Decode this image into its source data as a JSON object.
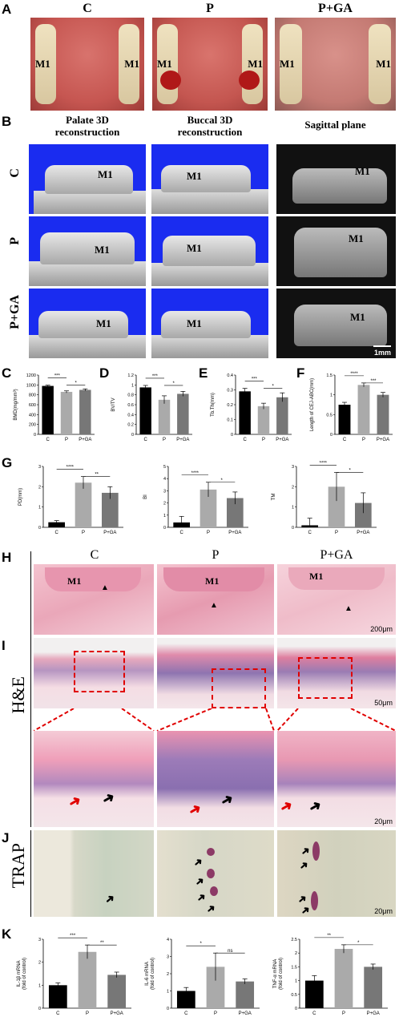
{
  "panelA": {
    "label": "A",
    "cols": [
      "C",
      "P",
      "P+GA"
    ],
    "tooth": "M1"
  },
  "panelB": {
    "label": "B",
    "cols": [
      "Palate 3D\nreconstruction",
      "Buccal 3D\nreconstruction",
      "Sagittal plane"
    ],
    "rows": [
      "C",
      "P",
      "P+GA"
    ],
    "tooth": "M1",
    "scale": "1mm"
  },
  "panelC": {
    "label": "C"
  },
  "panelD": {
    "label": "D"
  },
  "panelE": {
    "label": "E"
  },
  "panelF": {
    "label": "F"
  },
  "panelG": {
    "label": "G"
  },
  "panelH": {
    "label": "H",
    "cols": [
      "C",
      "P",
      "P+GA"
    ],
    "tooth": "M1",
    "scale": "200μm"
  },
  "panelI": {
    "label": "I",
    "rowlabel": "H&E",
    "scale1": "50μm",
    "scale2": "20μm"
  },
  "panelJ": {
    "label": "J",
    "rowlabel": "TRAP",
    "scale": "20μm"
  },
  "panelK": {
    "label": "K"
  },
  "colors": {
    "C": "#000000",
    "P": "#aaaaaa",
    "PGA": "#777777"
  },
  "chart_data": [
    {
      "id": "C",
      "type": "bar",
      "categories": [
        "C",
        "P",
        "P+GA"
      ],
      "values": [
        980,
        860,
        900
      ],
      "errors": [
        15,
        20,
        20
      ],
      "ylabel": "BMD(mg/mm³)",
      "ylim": [
        0,
        1200
      ],
      "yticks": [
        0,
        200,
        400,
        600,
        800,
        1000,
        1200
      ],
      "sig": [
        {
          "a": 0,
          "b": 1,
          "t": "***"
        },
        {
          "a": 1,
          "b": 2,
          "t": "*"
        }
      ]
    },
    {
      "id": "D",
      "type": "bar",
      "categories": [
        "C",
        "P",
        "P+GA"
      ],
      "values": [
        0.95,
        0.7,
        0.82
      ],
      "errors": [
        0.04,
        0.08,
        0.05
      ],
      "ylabel": "BV/TV",
      "ylim": [
        0,
        1.2
      ],
      "yticks": [
        0,
        0.2,
        0.4,
        0.6,
        0.8,
        1.0,
        1.2
      ],
      "sig": [
        {
          "a": 0,
          "b": 1,
          "t": "***"
        },
        {
          "a": 1,
          "b": 2,
          "t": "*"
        }
      ]
    },
    {
      "id": "E",
      "type": "bar",
      "categories": [
        "C",
        "P",
        "P+GA"
      ],
      "values": [
        0.29,
        0.19,
        0.25
      ],
      "errors": [
        0.02,
        0.02,
        0.03
      ],
      "ylabel": "Tb.Th(mm)",
      "ylim": [
        0,
        0.4
      ],
      "yticks": [
        0,
        0.1,
        0.2,
        0.3,
        0.4
      ],
      "sig": [
        {
          "a": 0,
          "b": 1,
          "t": "***"
        },
        {
          "a": 1,
          "b": 2,
          "t": "*"
        }
      ]
    },
    {
      "id": "F",
      "type": "bar",
      "categories": [
        "C",
        "P",
        "P+GA"
      ],
      "values": [
        0.75,
        1.25,
        1.0
      ],
      "errors": [
        0.06,
        0.05,
        0.06
      ],
      "ylabel": "Length of CEJ-ABC(mm)",
      "ylim": [
        0,
        1.5
      ],
      "yticks": [
        0,
        0.5,
        1.0,
        1.5
      ],
      "sig": [
        {
          "a": 0,
          "b": 1,
          "t": "****"
        },
        {
          "a": 1,
          "b": 2,
          "t": "***"
        }
      ]
    },
    {
      "id": "G1",
      "type": "bar",
      "categories": [
        "C",
        "P",
        "P+GA"
      ],
      "values": [
        0.25,
        2.2,
        1.7
      ],
      "errors": [
        0.08,
        0.3,
        0.3
      ],
      "ylabel": "PD(mm)",
      "ylim": [
        0,
        3
      ],
      "yticks": [
        0,
        1,
        2,
        3
      ],
      "sig": [
        {
          "a": 0,
          "b": 1,
          "t": "****"
        },
        {
          "a": 1,
          "b": 2,
          "t": "**"
        }
      ]
    },
    {
      "id": "G2",
      "type": "bar",
      "categories": [
        "C",
        "P",
        "P+GA"
      ],
      "values": [
        0.4,
        3.1,
        2.4
      ],
      "errors": [
        0.5,
        0.6,
        0.5
      ],
      "ylabel": "BI",
      "ylim": [
        0,
        5
      ],
      "yticks": [
        0,
        1,
        2,
        3,
        4,
        5
      ],
      "sig": [
        {
          "a": 0,
          "b": 1,
          "t": "****"
        },
        {
          "a": 1,
          "b": 2,
          "t": "*"
        }
      ]
    },
    {
      "id": "G3",
      "type": "bar",
      "categories": [
        "C",
        "P",
        "P+GA"
      ],
      "values": [
        0.1,
        2.0,
        1.2
      ],
      "errors": [
        0.35,
        0.7,
        0.5
      ],
      "ylabel": "TM",
      "ylim": [
        0,
        3
      ],
      "yticks": [
        0,
        1,
        2,
        3
      ],
      "sig": [
        {
          "a": 0,
          "b": 1,
          "t": "****"
        },
        {
          "a": 1,
          "b": 2,
          "t": "*"
        }
      ]
    },
    {
      "id": "K1",
      "type": "bar",
      "categories": [
        "C",
        "P",
        "P+GA"
      ],
      "values": [
        1.0,
        2.45,
        1.45
      ],
      "errors": [
        0.1,
        0.3,
        0.12
      ],
      "ylabel": "IL-1β mRNA\n(fold of control)",
      "ylim": [
        0,
        3
      ],
      "yticks": [
        0,
        1,
        2,
        3
      ],
      "sig": [
        {
          "a": 0,
          "b": 1,
          "t": "***"
        },
        {
          "a": 1,
          "b": 2,
          "t": "**"
        }
      ]
    },
    {
      "id": "K2",
      "type": "bar",
      "categories": [
        "C",
        "P",
        "P+GA"
      ],
      "values": [
        1.0,
        2.4,
        1.55
      ],
      "errors": [
        0.2,
        0.8,
        0.15
      ],
      "ylabel": "IL-6 mRNA\n(fold of control)",
      "ylim": [
        0,
        4
      ],
      "yticks": [
        0,
        1,
        2,
        3,
        4
      ],
      "sig": [
        {
          "a": 0,
          "b": 1,
          "t": "*"
        },
        {
          "a": 1,
          "b": 2,
          "t": "ns"
        }
      ]
    },
    {
      "id": "K3",
      "type": "bar",
      "categories": [
        "C",
        "P",
        "P+GA"
      ],
      "values": [
        1.0,
        2.15,
        1.5
      ],
      "errors": [
        0.18,
        0.15,
        0.1
      ],
      "ylabel": "TNF-α mRNA\n(fold of control)",
      "ylim": [
        0,
        2.5
      ],
      "yticks": [
        0,
        0.5,
        1.0,
        1.5,
        2.0,
        2.5
      ],
      "sig": [
        {
          "a": 0,
          "b": 1,
          "t": "**"
        },
        {
          "a": 1,
          "b": 2,
          "t": "*"
        }
      ]
    }
  ]
}
